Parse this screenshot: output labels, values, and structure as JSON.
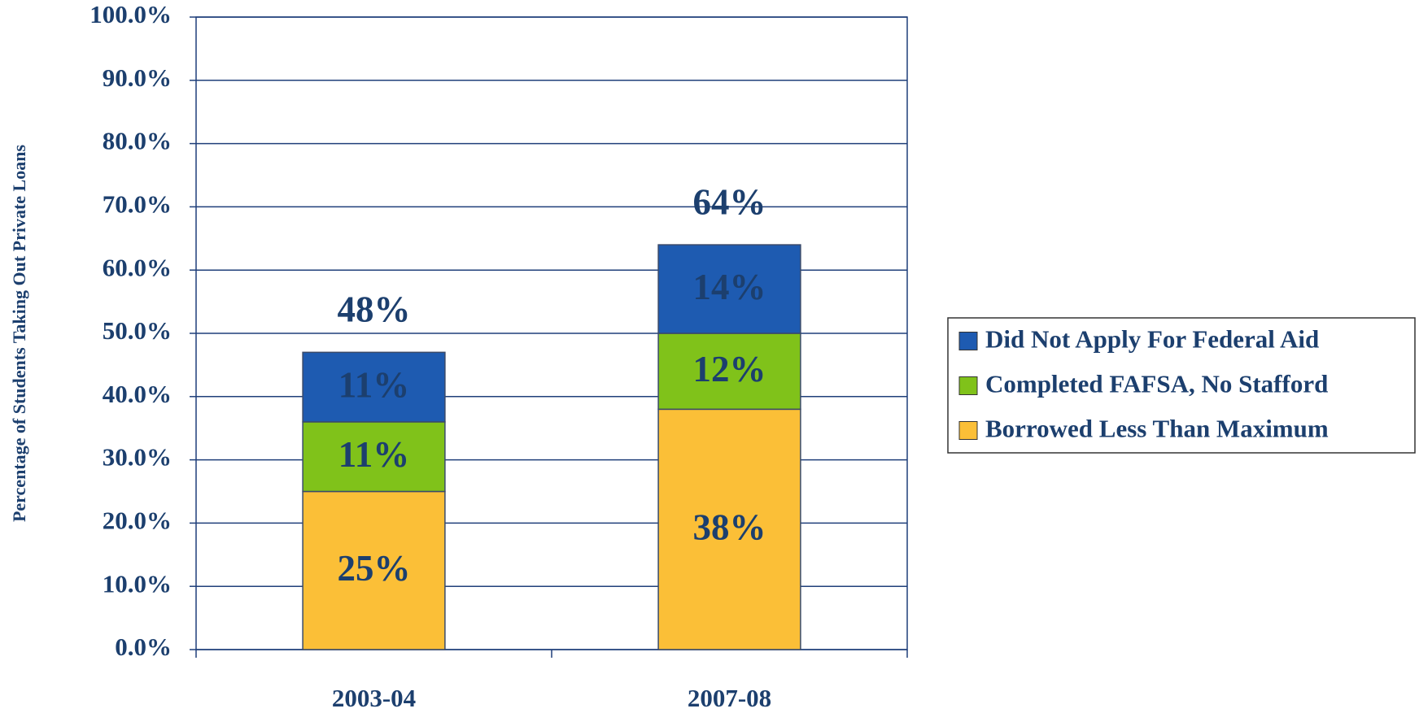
{
  "chart_data": {
    "type": "stacked_bar",
    "y_label": "Percentage of Students Taking Out Private Loans",
    "categories": [
      "2003-04",
      "2007-08"
    ],
    "series": [
      {
        "name": "Borrowed Less Than Maximum",
        "color": "#fbbf37",
        "values": [
          25,
          38
        ],
        "value_labels": [
          "25%",
          "38%"
        ]
      },
      {
        "name": "Completed FAFSA, No Stafford",
        "color": "#80c21a",
        "values": [
          11,
          12
        ],
        "value_labels": [
          "11%",
          "12%"
        ]
      },
      {
        "name": "Did Not Apply For Federal Aid",
        "color": "#1e5bb1",
        "values": [
          11,
          14
        ],
        "value_labels": [
          "11%",
          "14%"
        ]
      }
    ],
    "annotations": [
      "48%",
      "64%"
    ],
    "ylim": [
      0,
      100
    ],
    "yticks": [
      {
        "value": 0,
        "label": "0.0%"
      },
      {
        "value": 10,
        "label": "10.0%"
      },
      {
        "value": 20,
        "label": "20.0%"
      },
      {
        "value": 30,
        "label": "30.0%"
      },
      {
        "value": 40,
        "label": "40.0%"
      },
      {
        "value": 50,
        "label": "50.0%"
      },
      {
        "value": 60,
        "label": "60.0%"
      },
      {
        "value": 70,
        "label": "70.0%"
      },
      {
        "value": 80,
        "label": "80.0%"
      },
      {
        "value": 90,
        "label": "90.0%"
      },
      {
        "value": 100,
        "label": "100.0%"
      }
    ],
    "grid": true,
    "legend": "right"
  }
}
